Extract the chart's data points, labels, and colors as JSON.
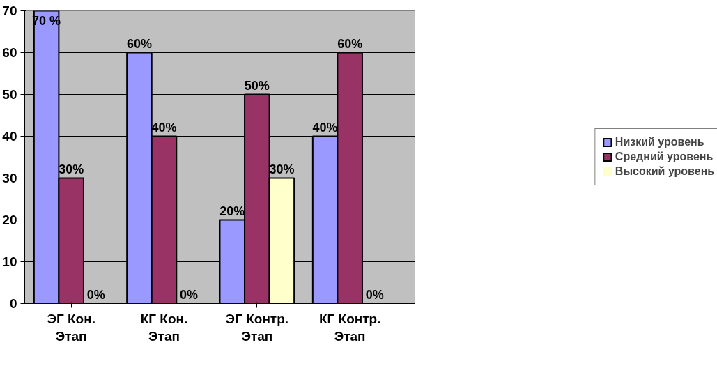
{
  "chart_data": {
    "type": "bar",
    "categories": [
      "ЭГ Кон.\nЭтап",
      "КГ Кон.\nЭтап",
      "ЭГ Контр.\nЭтап",
      "КГ Контр.\nЭтап"
    ],
    "series": [
      {
        "name": "Низкий уровень",
        "color": "#9999ff",
        "values": [
          70,
          60,
          20,
          40
        ],
        "value_labels": [
          "70 %",
          "60%",
          "20%",
          "40%"
        ]
      },
      {
        "name": "Средний уровень",
        "color": "#993366",
        "values": [
          30,
          40,
          50,
          60
        ],
        "value_labels": [
          "30%",
          "40%",
          "50%",
          "60%"
        ]
      },
      {
        "name": "Высокий уровень",
        "color": "#ffffcc",
        "values": [
          0,
          0,
          30,
          0
        ],
        "value_labels": [
          "0%",
          "0%",
          "30%",
          "0%"
        ]
      }
    ],
    "ylim": [
      0,
      70
    ],
    "yticks": [
      0,
      10,
      20,
      30,
      40,
      50,
      60,
      70
    ],
    "grid": "y",
    "legend": "right"
  }
}
